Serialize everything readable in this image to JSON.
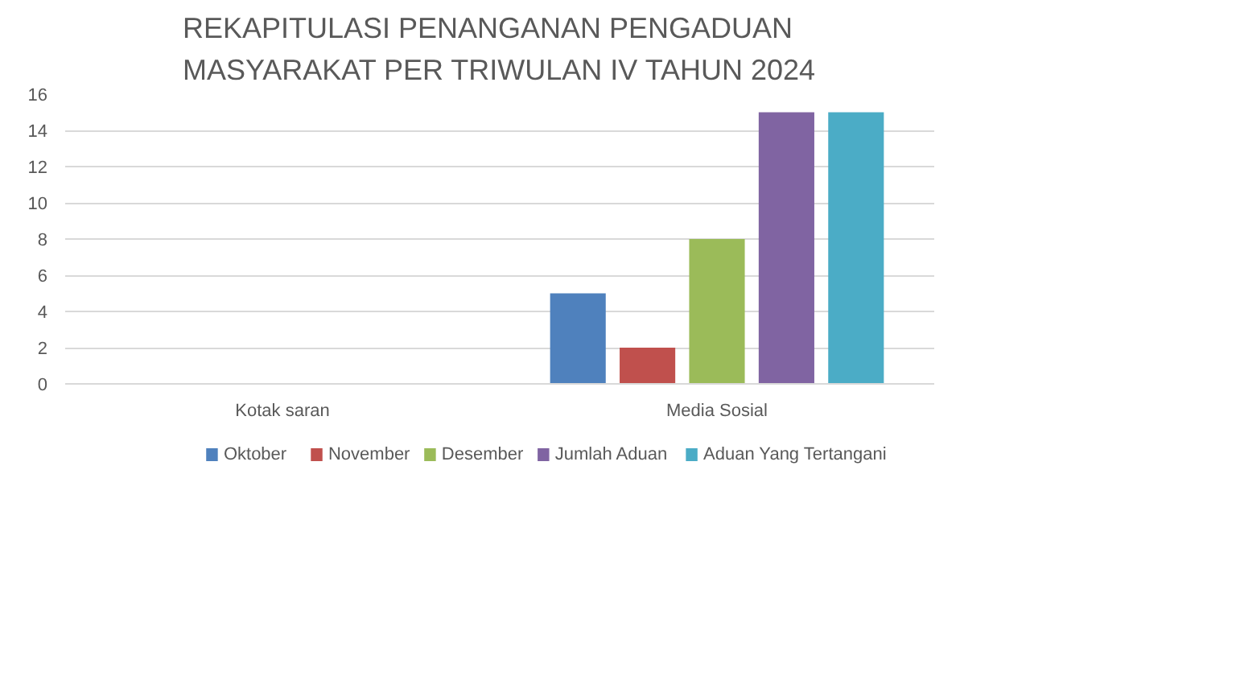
{
  "chart_data": {
    "type": "bar",
    "title": "REKAPITULASI  PENANGANAN PENGADUAN\nMASYARAKAT PER TRIWULAN IV TAHUN 2024",
    "categories": [
      "Kotak saran",
      "Media Sosial"
    ],
    "series": [
      {
        "name": "Oktober",
        "color": "#4f81bd",
        "values": [
          0,
          5
        ]
      },
      {
        "name": "November",
        "color": "#c0504d",
        "values": [
          0,
          2
        ]
      },
      {
        "name": "Desember",
        "color": "#9bbb59",
        "values": [
          0,
          8
        ]
      },
      {
        "name": "Jumlah Aduan",
        "color": "#8064a2",
        "values": [
          0,
          15
        ]
      },
      {
        "name": "Aduan Yang Tertangani",
        "color": "#4bacc6",
        "values": [
          0,
          15
        ]
      }
    ],
    "ylim": [
      0,
      16
    ],
    "yticks": [
      0,
      2,
      4,
      6,
      8,
      10,
      12,
      14,
      16
    ],
    "grid": "y",
    "legend": "bottom"
  }
}
